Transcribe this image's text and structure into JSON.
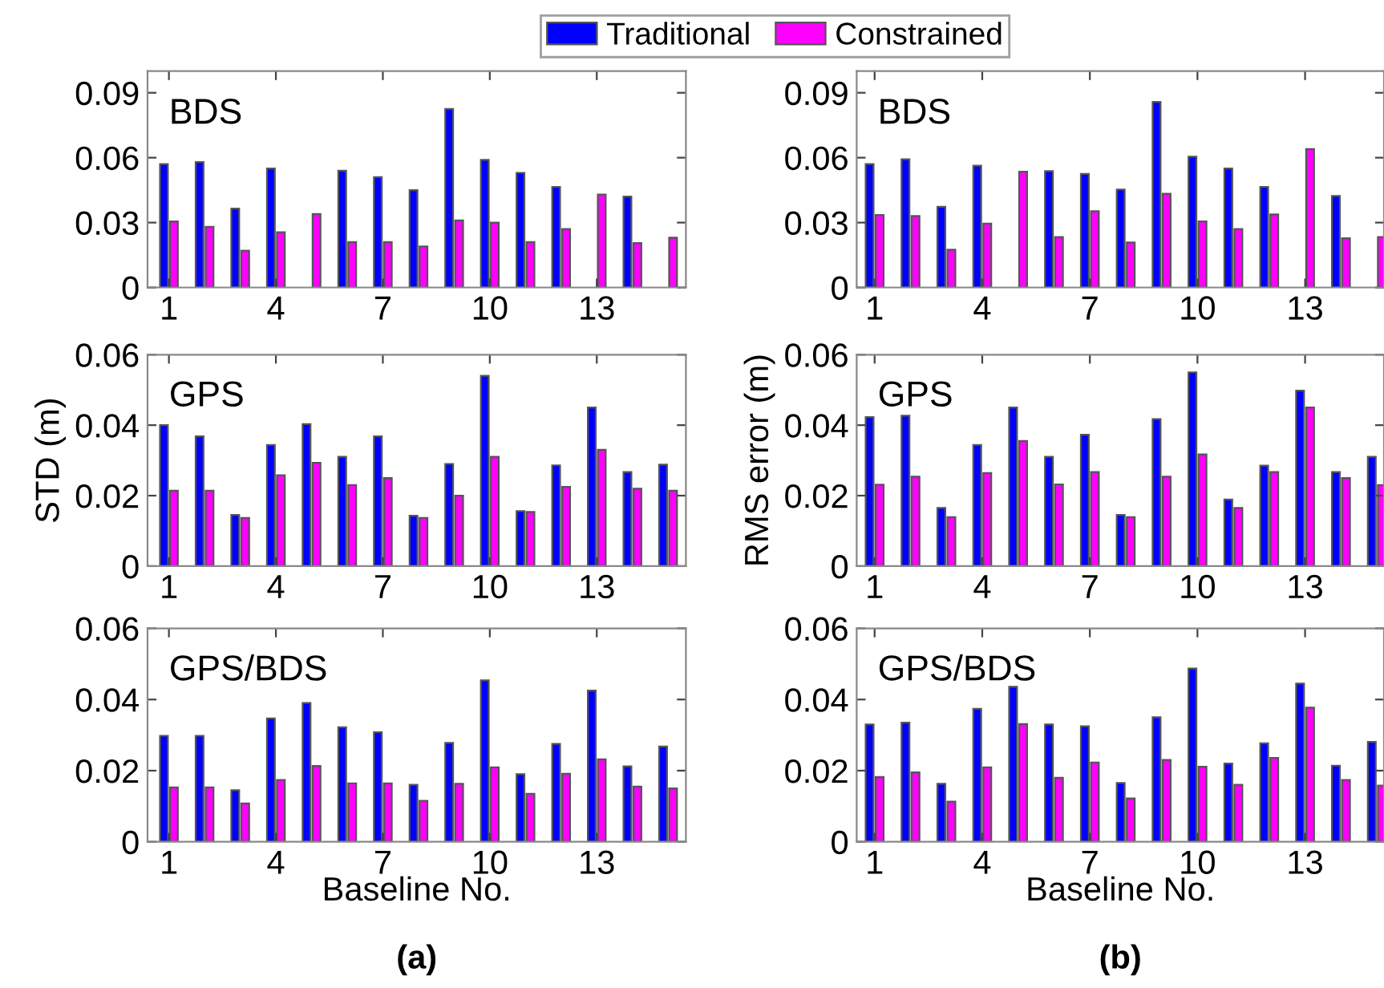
{
  "chart_data": [
    {
      "type": "bar",
      "title": "BDS",
      "x": [
        1,
        2,
        3,
        4,
        5,
        6,
        7,
        8,
        9,
        10,
        11,
        12,
        13,
        14,
        15
      ],
      "xlim": [
        0.4,
        15.5
      ],
      "xticks": [
        1,
        4,
        7,
        10,
        13
      ],
      "ylim": [
        0,
        0.1
      ],
      "yticks": [
        0,
        0.03,
        0.06,
        0.09
      ],
      "legend": "top",
      "series": [
        {
          "name": "Traditional",
          "color": "#0000ff",
          "values": [
            0.057,
            0.058,
            0.0365,
            0.055,
            null,
            0.054,
            0.051,
            0.045,
            0.0825,
            0.059,
            0.053,
            0.0465,
            null,
            0.042,
            null
          ]
        },
        {
          "name": "Constrained",
          "color": "#ff00ff",
          "values": [
            0.0305,
            0.028,
            0.017,
            0.0255,
            0.034,
            0.021,
            0.021,
            0.019,
            0.031,
            0.03,
            0.021,
            0.027,
            0.043,
            0.0205,
            0.023
          ]
        }
      ]
    },
    {
      "type": "bar",
      "title": "GPS",
      "ylabel": "STD (m)",
      "x": [
        1,
        2,
        3,
        4,
        5,
        6,
        7,
        8,
        9,
        10,
        11,
        12,
        13,
        14,
        15
      ],
      "xlim": [
        0.4,
        15.5
      ],
      "xticks": [
        1,
        4,
        7,
        10,
        13
      ],
      "ylim": [
        0,
        0.06
      ],
      "yticks": [
        0,
        0.02,
        0.04,
        0.06
      ],
      "series": [
        {
          "color": "#0000ff",
          "values": [
            0.04,
            0.0368,
            0.0145,
            0.0344,
            0.0403,
            0.031,
            0.0368,
            0.0143,
            0.029,
            0.054,
            0.0156,
            0.0286,
            0.045,
            0.0267,
            0.0288
          ]
        },
        {
          "color": "#ff00ff",
          "values": [
            0.0214,
            0.0214,
            0.0137,
            0.0258,
            0.0293,
            0.023,
            0.025,
            0.0137,
            0.02,
            0.031,
            0.0154,
            0.0225,
            0.033,
            0.022,
            0.0214
          ]
        }
      ]
    },
    {
      "type": "bar",
      "title": "GPS/BDS",
      "xlabel": "Baseline No.",
      "annotations": [
        "(a)"
      ],
      "x": [
        1,
        2,
        3,
        4,
        5,
        6,
        7,
        8,
        9,
        10,
        11,
        12,
        13,
        14,
        15
      ],
      "xlim": [
        0.4,
        15.5
      ],
      "xticks": [
        1,
        4,
        7,
        10,
        13
      ],
      "ylim": [
        0,
        0.06
      ],
      "yticks": [
        0,
        0.02,
        0.04,
        0.06
      ],
      "series": [
        {
          "color": "#0000ff",
          "values": [
            0.0298,
            0.0298,
            0.0145,
            0.0347,
            0.039,
            0.0322,
            0.0308,
            0.016,
            0.0278,
            0.0454,
            0.019,
            0.0275,
            0.0425,
            0.0212,
            0.0268
          ]
        },
        {
          "color": "#ff00ff",
          "values": [
            0.0153,
            0.0153,
            0.0108,
            0.0174,
            0.0213,
            0.0164,
            0.0164,
            0.0115,
            0.0163,
            0.0209,
            0.0135,
            0.0191,
            0.0232,
            0.0155,
            0.015
          ]
        }
      ]
    },
    {
      "type": "bar",
      "title": "BDS",
      "x": [
        1,
        2,
        3,
        4,
        5,
        6,
        7,
        8,
        9,
        10,
        11,
        12,
        13,
        14,
        15
      ],
      "xlim": [
        0.5,
        15.2
      ],
      "xticks": [
        1,
        4,
        7,
        10,
        13
      ],
      "ylim": [
        0,
        0.1
      ],
      "yticks": [
        0,
        0.03,
        0.06,
        0.09
      ],
      "series": [
        {
          "color": "#0000ff",
          "values": [
            0.057,
            0.0593,
            0.0373,
            0.0563,
            null,
            0.0538,
            0.0525,
            0.0453,
            0.0858,
            0.0605,
            0.055,
            0.0465,
            null,
            0.0423,
            null
          ]
        },
        {
          "color": "#ff00ff",
          "values": [
            0.0335,
            0.033,
            0.0175,
            0.0295,
            0.0535,
            0.0233,
            0.0353,
            0.0208,
            0.0433,
            0.0305,
            0.027,
            0.0338,
            0.064,
            0.0228,
            0.0233
          ]
        }
      ]
    },
    {
      "type": "bar",
      "title": "GPS",
      "ylabel": "RMS error (m)",
      "x": [
        1,
        2,
        3,
        4,
        5,
        6,
        7,
        8,
        9,
        10,
        11,
        12,
        13,
        14,
        15
      ],
      "xlim": [
        0.5,
        15.2
      ],
      "xticks": [
        1,
        4,
        7,
        10,
        13
      ],
      "ylim": [
        0,
        0.06
      ],
      "yticks": [
        0,
        0.02,
        0.04,
        0.06
      ],
      "series": [
        {
          "color": "#0000ff",
          "values": [
            0.0423,
            0.0427,
            0.0165,
            0.0344,
            0.045,
            0.031,
            0.0373,
            0.0145,
            0.0417,
            0.055,
            0.0189,
            0.0285,
            0.0498,
            0.0267,
            0.031
          ]
        },
        {
          "color": "#ff00ff",
          "values": [
            0.0231,
            0.0254,
            0.0139,
            0.0264,
            0.0355,
            0.0232,
            0.0267,
            0.0139,
            0.0254,
            0.0317,
            0.0165,
            0.0267,
            0.045,
            0.025,
            0.023
          ]
        }
      ]
    },
    {
      "type": "bar",
      "title": "GPS/BDS",
      "xlabel": "Baseline No.",
      "annotations": [
        "(b)"
      ],
      "x": [
        1,
        2,
        3,
        4,
        5,
        6,
        7,
        8,
        9,
        10,
        11,
        12,
        13,
        14,
        15
      ],
      "xlim": [
        0.5,
        15.2
      ],
      "xticks": [
        1,
        4,
        7,
        10,
        13
      ],
      "ylim": [
        0,
        0.06
      ],
      "yticks": [
        0,
        0.02,
        0.04,
        0.06
      ],
      "series": [
        {
          "color": "#0000ff",
          "values": [
            0.033,
            0.0335,
            0.0163,
            0.0374,
            0.0436,
            0.033,
            0.0325,
            0.0165,
            0.035,
            0.0487,
            0.022,
            0.0277,
            0.0445,
            0.0214,
            0.0281
          ]
        },
        {
          "color": "#ff00ff",
          "values": [
            0.0182,
            0.0195,
            0.0113,
            0.0209,
            0.0331,
            0.018,
            0.0223,
            0.0122,
            0.023,
            0.0211,
            0.016,
            0.0236,
            0.0377,
            0.0174,
            0.0158
          ]
        }
      ]
    }
  ]
}
